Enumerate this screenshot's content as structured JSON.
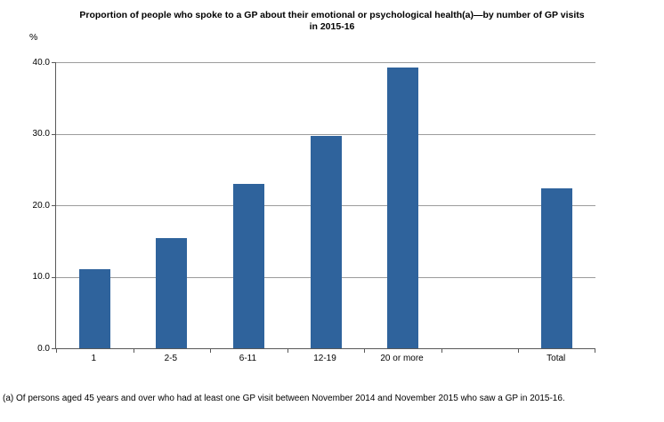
{
  "header": {
    "title_line1": "Proportion of people who spoke to a GP about their emotional or psychological health(a)—by number of GP visits",
    "title_line2": "in 2015-16"
  },
  "y_axis_unit": "%",
  "footnote": "(a) Of persons aged 45 years and over who had at least one GP visit between November 2014 and November 2015 who saw a GP in 2015-16.",
  "chart_data": {
    "type": "bar",
    "title": "Proportion of people who spoke to a GP about their emotional or psychological health(a)—by number of GP visits in 2015-16",
    "categories": [
      "1",
      "2-5",
      "6-11",
      "12-19",
      "20 or more",
      "Total"
    ],
    "values": [
      11.0,
      15.4,
      23.0,
      29.7,
      39.3,
      22.4
    ],
    "slot_positions": [
      0,
      1,
      2,
      3,
      4,
      6
    ],
    "total_slots": 7,
    "xlabel": "",
    "ylabel": "%",
    "ylim": [
      0,
      40
    ],
    "yticks": [
      0,
      10,
      20,
      30,
      40
    ],
    "ytick_labels": [
      "0.0",
      "10.0",
      "20.0",
      "30.0",
      "40.0"
    ],
    "grid": "horizontal",
    "legend": "none",
    "bar_color": "#2F639C",
    "gridline_color": "#9C9C9C",
    "axis_color": "#595959"
  }
}
